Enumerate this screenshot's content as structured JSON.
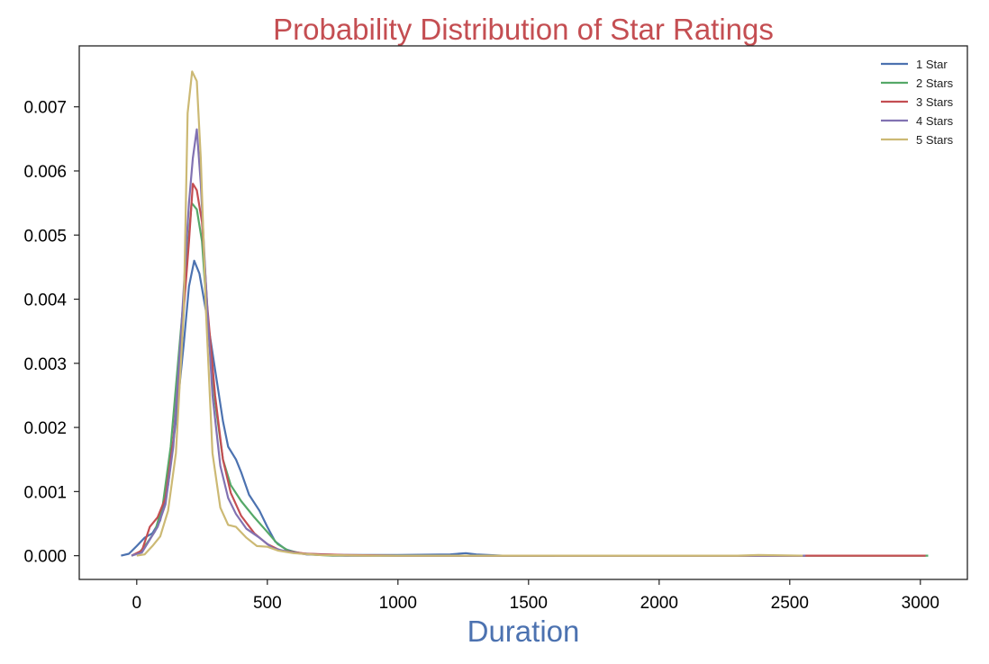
{
  "chart_data": {
    "type": "line",
    "title": "Probability Distribution of Star Ratings",
    "xlabel": "Duration",
    "ylabel": "",
    "xlim": [
      -220,
      3180
    ],
    "ylim": [
      -0.00037,
      0.00795
    ],
    "x_ticks": [
      0,
      500,
      1000,
      1500,
      2000,
      2500,
      3000
    ],
    "y_ticks": [
      0.0,
      0.001,
      0.002,
      0.003,
      0.004,
      0.005,
      0.006,
      0.007
    ],
    "x_tick_labels": [
      "0",
      "500",
      "1000",
      "1500",
      "2000",
      "2500",
      "3000"
    ],
    "y_tick_labels": [
      "0.000",
      "0.001",
      "0.002",
      "0.003",
      "0.004",
      "0.005",
      "0.006",
      "0.007"
    ],
    "grid": false,
    "legend_position": "top-right",
    "colors": {
      "title": "#c44e52",
      "xlabel": "#4c72b0",
      "axes_edge": "#222222"
    },
    "series": [
      {
        "name": "1 Star",
        "color": "#4c72b0",
        "points": [
          [
            -60,
            0.0
          ],
          [
            -30,
            3e-05
          ],
          [
            0,
            0.00015
          ],
          [
            30,
            0.00028
          ],
          [
            60,
            0.00035
          ],
          [
            90,
            0.00055
          ],
          [
            120,
            0.0011
          ],
          [
            150,
            0.0021
          ],
          [
            180,
            0.0033
          ],
          [
            200,
            0.0042
          ],
          [
            220,
            0.0046
          ],
          [
            240,
            0.0044
          ],
          [
            270,
            0.0037
          ],
          [
            300,
            0.0029
          ],
          [
            330,
            0.0021
          ],
          [
            350,
            0.0017
          ],
          [
            380,
            0.0015
          ],
          [
            400,
            0.0013
          ],
          [
            430,
            0.00095
          ],
          [
            470,
            0.0007
          ],
          [
            500,
            0.00045
          ],
          [
            530,
            0.00022
          ],
          [
            570,
            0.0001
          ],
          [
            620,
            4e-05
          ],
          [
            700,
            2e-05
          ],
          [
            800,
            1e-05
          ],
          [
            900,
            1e-05
          ],
          [
            1000,
            1e-05
          ],
          [
            1200,
            2e-05
          ],
          [
            1260,
            4e-05
          ],
          [
            1300,
            2e-05
          ],
          [
            1400,
            0.0
          ],
          [
            1600,
            0.0
          ]
        ]
      },
      {
        "name": "2 Stars",
        "color": "#55a868",
        "points": [
          [
            -20,
            0.0
          ],
          [
            10,
            5e-05
          ],
          [
            40,
            0.0002
          ],
          [
            70,
            0.00038
          ],
          [
            100,
            0.0008
          ],
          [
            130,
            0.0017
          ],
          [
            160,
            0.0031
          ],
          [
            190,
            0.0045
          ],
          [
            210,
            0.0055
          ],
          [
            230,
            0.0054
          ],
          [
            250,
            0.0049
          ],
          [
            270,
            0.0037
          ],
          [
            300,
            0.0024
          ],
          [
            330,
            0.0015
          ],
          [
            360,
            0.0011
          ],
          [
            400,
            0.00085
          ],
          [
            450,
            0.0006
          ],
          [
            500,
            0.00037
          ],
          [
            540,
            0.00018
          ],
          [
            580,
            8e-05
          ],
          [
            650,
            2e-05
          ],
          [
            750,
            0.0
          ],
          [
            1000,
            0.0
          ],
          [
            1500,
            0.0
          ],
          [
            2000,
            0.0
          ],
          [
            2500,
            0.0
          ],
          [
            3030,
            0.0
          ]
        ]
      },
      {
        "name": "3 Stars",
        "color": "#c44e52",
        "points": [
          [
            -20,
            0.0
          ],
          [
            20,
            8e-05
          ],
          [
            50,
            0.00045
          ],
          [
            80,
            0.0006
          ],
          [
            110,
            0.0009
          ],
          [
            140,
            0.0018
          ],
          [
            170,
            0.0033
          ],
          [
            200,
            0.0049
          ],
          [
            215,
            0.0058
          ],
          [
            230,
            0.0057
          ],
          [
            250,
            0.0052
          ],
          [
            270,
            0.0039
          ],
          [
            300,
            0.0025
          ],
          [
            330,
            0.0015
          ],
          [
            360,
            0.00098
          ],
          [
            400,
            0.00062
          ],
          [
            450,
            0.00035
          ],
          [
            500,
            0.00018
          ],
          [
            550,
            8e-05
          ],
          [
            650,
            3e-05
          ],
          [
            800,
            1e-05
          ],
          [
            1000,
            0.0
          ],
          [
            1500,
            0.0
          ],
          [
            2000,
            0.0
          ],
          [
            2550,
            0.0
          ],
          [
            3020,
            0.0
          ]
        ]
      },
      {
        "name": "4 Stars",
        "color": "#8172b2",
        "points": [
          [
            -20,
            0.0
          ],
          [
            20,
            5e-05
          ],
          [
            50,
            0.00025
          ],
          [
            80,
            0.00045
          ],
          [
            110,
            0.0008
          ],
          [
            140,
            0.0017
          ],
          [
            170,
            0.0035
          ],
          [
            200,
            0.0055
          ],
          [
            215,
            0.0062
          ],
          [
            230,
            0.00665
          ],
          [
            245,
            0.0058
          ],
          [
            265,
            0.0042
          ],
          [
            290,
            0.0025
          ],
          [
            320,
            0.0014
          ],
          [
            350,
            0.0009
          ],
          [
            380,
            0.00065
          ],
          [
            420,
            0.00042
          ],
          [
            470,
            0.00028
          ],
          [
            520,
            0.00012
          ],
          [
            580,
            6e-05
          ],
          [
            650,
            2e-05
          ],
          [
            800,
            0.0
          ],
          [
            1000,
            0.0
          ],
          [
            1500,
            0.0
          ],
          [
            2000,
            0.0
          ],
          [
            2500,
            0.0
          ],
          [
            2560,
            0.0
          ]
        ]
      },
      {
        "name": "5 Stars",
        "color": "#ccb974",
        "points": [
          [
            0,
            0.0
          ],
          [
            30,
            2e-05
          ],
          [
            60,
            0.00015
          ],
          [
            90,
            0.0003
          ],
          [
            120,
            0.0007
          ],
          [
            150,
            0.0016
          ],
          [
            180,
            0.0038
          ],
          [
            195,
            0.0069
          ],
          [
            212,
            0.00755
          ],
          [
            230,
            0.0074
          ],
          [
            245,
            0.0062
          ],
          [
            265,
            0.0038
          ],
          [
            290,
            0.0016
          ],
          [
            320,
            0.00075
          ],
          [
            350,
            0.00048
          ],
          [
            380,
            0.00045
          ],
          [
            420,
            0.00028
          ],
          [
            460,
            0.00015
          ],
          [
            500,
            0.00014
          ],
          [
            540,
            8e-05
          ],
          [
            600,
            4e-05
          ],
          [
            700,
            1e-05
          ],
          [
            900,
            0.0
          ],
          [
            1300,
            0.0
          ],
          [
            1800,
            0.0
          ],
          [
            2300,
            0.0
          ],
          [
            2380,
            1e-05
          ],
          [
            2550,
            0.0
          ]
        ]
      }
    ]
  }
}
